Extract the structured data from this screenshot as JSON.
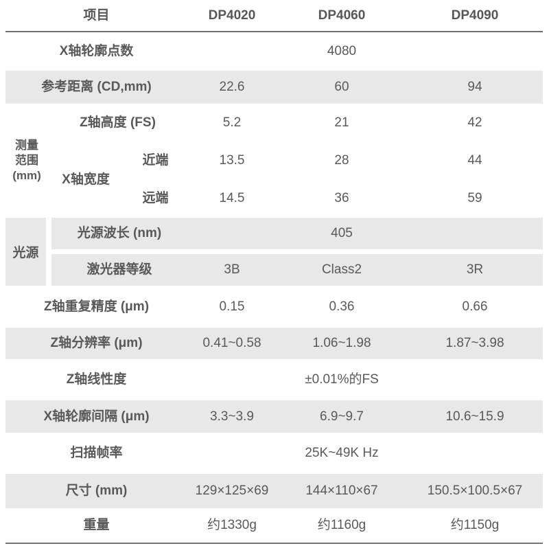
{
  "header": {
    "item": "项目",
    "models": [
      "DP4020",
      "DP4060",
      "DP4090"
    ]
  },
  "profile_points": {
    "label": "X轴轮廓点数",
    "value": "4080"
  },
  "reference_distance": {
    "label": "参考距离 (CD,mm)",
    "dp4020": "22.6",
    "dp4060": "60",
    "dp4090": "94"
  },
  "measure_range": {
    "group_line1": "测量",
    "group_line2": "范围",
    "group_line3": "(mm)",
    "z_height": {
      "label": "Z轴高度 (FS)",
      "dp4020": "5.2",
      "dp4060": "21",
      "dp4090": "42"
    },
    "x_width": {
      "label": "X轴宽度",
      "near": {
        "label": "近端",
        "dp4020": "13.5",
        "dp4060": "28",
        "dp4090": "44"
      },
      "far": {
        "label": "远端",
        "dp4020": "14.5",
        "dp4060": "36",
        "dp4090": "59"
      }
    }
  },
  "light_source": {
    "group_label": "光源",
    "wavelength": {
      "label": "光源波长 (nm)",
      "value": "405"
    },
    "laser_class": {
      "label": "激光器等级",
      "dp4020": "3B",
      "dp4060": "Class2",
      "dp4090": "3R"
    }
  },
  "z_repeatability": {
    "label": "Z轴重复精度 (μm)",
    "dp4020": "0.15",
    "dp4060": "0.36",
    "dp4090": "0.66"
  },
  "z_resolution": {
    "label": "Z轴分辨率 (μm)",
    "dp4020": "0.41~0.58",
    "dp4060": "1.06~1.98",
    "dp4090": "1.87~3.98"
  },
  "z_linearity": {
    "label": "Z轴线性度",
    "value": "±0.01%的FS"
  },
  "x_profile_interval": {
    "label": "X轴轮廓间隔 (μm)",
    "dp4020": "3.3~3.9",
    "dp4060": "6.9~9.7",
    "dp4090": "10.6~15.9"
  },
  "scan_rate": {
    "label": "扫描帧率",
    "value": "25K~49K Hz"
  },
  "dimensions": {
    "label": "尺寸 (mm)",
    "dp4020": "129×125×69",
    "dp4060": "144×110×67",
    "dp4090": "150.5×100.5×67"
  },
  "weight": {
    "label": "重量",
    "dp4020": "约1330g",
    "dp4060": "约1160g",
    "dp4090": "约1150g"
  },
  "colors": {
    "row_alt": "#e8e8e8",
    "rule": "#6e6e6e",
    "text": "#595959"
  }
}
